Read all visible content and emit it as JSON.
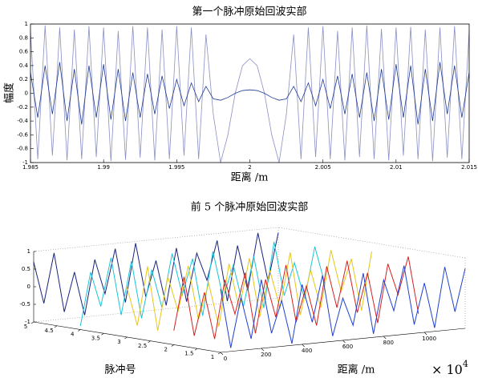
{
  "chart_data": [
    {
      "type": "line",
      "title": "第一个脉冲原始回波实部",
      "x_label": "距离 /m",
      "y_label": "幅度",
      "x": [
        1.985,
        1.9855,
        1.986,
        1.9865,
        1.987,
        1.9875,
        1.988,
        1.9885,
        1.989,
        1.9895,
        1.99,
        1.9905,
        1.991,
        1.9915,
        1.992,
        1.9925,
        1.993,
        1.9935,
        1.994,
        1.9945,
        1.995,
        1.9955,
        1.996,
        1.9965,
        1.997,
        1.9975,
        1.998,
        1.9985,
        1.999,
        1.9995,
        2,
        2.0005,
        2.001,
        2.0015,
        2.002,
        2.0025,
        2.003,
        2.0035,
        2.004,
        2.0045,
        2.005,
        2.0055,
        2.006,
        2.0065,
        2.007,
        2.0075,
        2.008,
        2.0085,
        2.009,
        2.0095,
        2.01,
        2.0105,
        2.011,
        2.0115,
        2.012,
        2.0125,
        2.013,
        2.0135,
        2.014,
        2.0145,
        2.015
      ],
      "series": [
        {
          "color": "#8a8fc4",
          "values": [
            0.9,
            -0.95,
            0.98,
            -0.9,
            0.95,
            -0.97,
            0.92,
            -0.95,
            0.97,
            -0.92,
            0.95,
            -0.98,
            0.9,
            -0.96,
            0.97,
            -0.93,
            0.95,
            -0.97,
            0.92,
            -0.95,
            0.97,
            -0.9,
            0.95,
            -0.95,
            0.85,
            -0.3,
            -1,
            -0.6,
            0,
            0.4,
            0.5,
            0.4,
            0,
            -0.6,
            -1,
            -0.3,
            0.85,
            -0.95,
            0.95,
            -0.92,
            0.97,
            -0.95,
            0.9,
            -0.97,
            0.95,
            -0.92,
            0.98,
            -0.95,
            0.93,
            -0.97,
            0.95,
            -0.9,
            0.96,
            -0.95,
            0.92,
            -0.98,
            0.95,
            -0.93,
            0.97,
            -0.95,
            0.9
          ]
        },
        {
          "color": "#1f3a93",
          "values": [
            0.3,
            -0.35,
            0.4,
            -0.3,
            0.45,
            -0.4,
            0.35,
            -0.45,
            0.4,
            -0.35,
            0.42,
            -0.38,
            0.35,
            -0.4,
            0.3,
            -0.35,
            0.28,
            -0.3,
            0.25,
            -0.22,
            0.2,
            -0.18,
            0.15,
            -0.12,
            0.1,
            -0.08,
            -0.1,
            -0.06,
            0,
            0.04,
            0.05,
            0.04,
            0,
            -0.06,
            -0.1,
            -0.08,
            0.1,
            -0.12,
            0.15,
            -0.18,
            0.2,
            -0.22,
            0.25,
            -0.3,
            0.28,
            -0.35,
            0.3,
            -0.4,
            0.35,
            -0.38,
            0.42,
            -0.35,
            0.4,
            -0.45,
            0.35,
            -0.4,
            0.45,
            -0.3,
            0.4,
            -0.35,
            0.3
          ]
        }
      ],
      "xlim": [
        1.985,
        2.015
      ],
      "xticks": [
        1.985,
        1.99,
        1.995,
        2,
        2.005,
        2.01,
        2.015
      ],
      "ylim": [
        -1,
        1
      ],
      "yticks": [
        -1,
        -0.8,
        -0.6,
        -0.4,
        -0.2,
        0,
        0.2,
        0.4,
        0.6,
        0.8,
        1
      ]
    },
    {
      "type": "line3d",
      "title": "前 5 个脉冲原始回波实部",
      "x_label": "距离 /m",
      "y_label": "脉冲号",
      "x_exponent": {
        "base": "× 10",
        "power": "4"
      },
      "x": [
        0,
        50,
        100,
        150,
        200,
        250,
        300,
        350,
        400,
        450,
        500,
        550,
        600,
        650,
        700,
        750,
        800,
        850,
        900,
        950,
        1000,
        1050,
        1100,
        1150,
        1200
      ],
      "series": [
        {
          "pulse": 5,
          "color": "#1a237e",
          "values": [
            0.7,
            -0.5,
            0.9,
            -0.8,
            0.3,
            -0.95,
            0.6,
            -0.4,
            0.85,
            -0.7,
            0.95,
            -0.6,
            0.4,
            -0.9,
            0.7,
            -0.85,
            0.5,
            -0.3,
            0.8,
            -0.95,
            0.6,
            -0.7,
            0.9,
            -0.5,
            0.85
          ]
        },
        {
          "pulse": 4,
          "color": "#19c6d6",
          "values": [
            -0.9,
            0.6,
            -0.4,
            0.95,
            -0.7,
            0.8,
            -0.85,
            0.5,
            -0.6,
            0.9,
            -0.3,
            0.7,
            -0.95,
            0.85,
            -0.5,
            0.4,
            -0.8,
            0.6,
            -0.9,
            0.95,
            -0.6,
            0.3,
            -0.75,
            0.7,
            -0.4
          ]
        },
        {
          "pulse": 3,
          "color": "#e6c619",
          "values": [
            0.4,
            -0.7,
            0.95,
            -0.9,
            0.6,
            -0.4,
            0.85,
            -0.7,
            0.3,
            -0.95,
            0.8,
            -0.5,
            0.9,
            -0.8,
            0.5,
            -0.6,
            0.95,
            -0.85,
            0.4,
            -0.7,
            0.9,
            -0.3,
            0.6,
            -0.9,
            0.75
          ]
        },
        {
          "pulse": 2,
          "color": "#d62020",
          "values": [
            -0.6,
            0.9,
            -0.8,
            0.4,
            -0.95,
            0.7,
            -0.3,
            0.85,
            -0.9,
            0.6,
            -0.5,
            0.95,
            -0.7,
            0.3,
            -0.85,
            0.8,
            -0.4,
            0.9,
            -0.6,
            0.5,
            -0.95,
            0.7,
            -0.2,
            0.85,
            -0.8
          ]
        },
        {
          "pulse": 1,
          "color": "#2040d0",
          "values": [
            0.8,
            -0.9,
            0.5,
            -0.7,
            0.95,
            -0.6,
            0.3,
            -0.95,
            0.7,
            -0.4,
            0.9,
            -0.85,
            0.2,
            -0.6,
            0.85,
            -0.9,
            0.6,
            -0.3,
            0.95,
            -0.75,
            0.4,
            -0.9,
            0.8,
            -0.5,
            0.7
          ]
        }
      ],
      "xlim": [
        0,
        1200
      ],
      "xticks": [
        0,
        200,
        400,
        600,
        800,
        1000
      ],
      "ylim": [
        1,
        5
      ],
      "yticks": [
        1,
        1.5,
        2,
        2.5,
        3,
        3.5,
        4,
        4.5,
        5
      ],
      "zlim": [
        -1,
        1
      ],
      "zticks": [
        -1,
        -0.5,
        0,
        0.5,
        1
      ]
    }
  ]
}
